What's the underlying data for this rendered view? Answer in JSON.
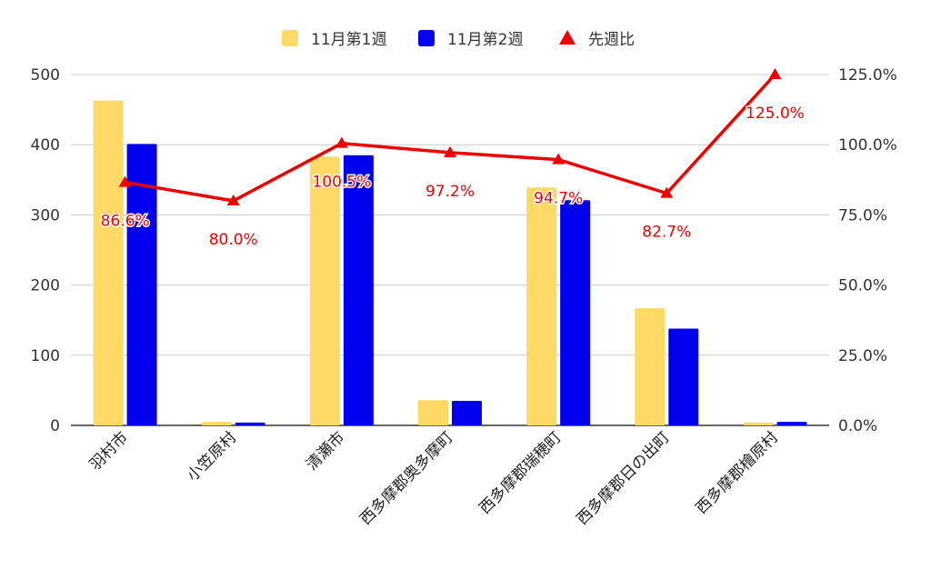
{
  "chart_data": {
    "type": "bar",
    "categories": [
      "羽村市",
      "小笠原村",
      "清瀬市",
      "西多摩郡奥多摩町",
      "西多摩郡瑞穂町",
      "西多摩郡日の出町",
      "西多摩郡檜原村"
    ],
    "series": [
      {
        "name": "11月第1週",
        "type": "bar",
        "axis": "left",
        "color": "#FFD966",
        "values": [
          463,
          5,
          383,
          36,
          339,
          167,
          4
        ]
      },
      {
        "name": "11月第2週",
        "type": "bar",
        "axis": "left",
        "color": "#0000EE",
        "values": [
          401,
          4,
          385,
          35,
          321,
          138,
          5
        ]
      },
      {
        "name": "先週比",
        "type": "line",
        "axis": "right",
        "color": "#EE0000",
        "marker": "triangle",
        "values": [
          86.6,
          80.0,
          100.5,
          97.2,
          94.7,
          82.7,
          125.0
        ],
        "labels": [
          "86.6%",
          "80.0%",
          "100.5%",
          "97.2%",
          "94.7%",
          "82.7%",
          "125.0%"
        ]
      }
    ],
    "y_left": {
      "ylim": [
        0,
        500
      ],
      "ticks": [
        0,
        100,
        200,
        300,
        400,
        500
      ],
      "tick_labels": [
        "0",
        "100",
        "200",
        "300",
        "400",
        "500"
      ]
    },
    "y_right": {
      "ylim": [
        0,
        125
      ],
      "ticks": [
        0,
        25,
        50,
        75,
        100,
        125
      ],
      "tick_labels": [
        "0.0%",
        "25.0%",
        "50.0%",
        "75.0%",
        "100.0%",
        "125.0%"
      ]
    },
    "legend_position": "top",
    "grid": true
  }
}
